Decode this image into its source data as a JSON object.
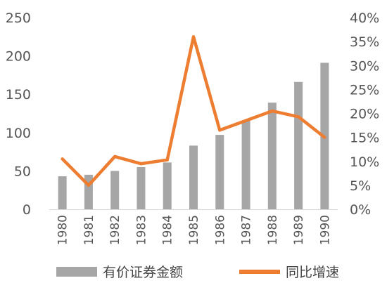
{
  "chart_data": {
    "type": "bar",
    "categories": [
      "1980",
      "1981",
      "1982",
      "1983",
      "1984",
      "1985",
      "1986",
      "1987",
      "1988",
      "1989",
      "1990"
    ],
    "series": [
      {
        "name": "有价证券金额",
        "type": "bar",
        "axis": "left",
        "color": "#a6a6a6",
        "values": [
          43,
          45,
          50,
          55,
          61,
          83,
          97,
          116,
          139,
          166,
          191
        ]
      },
      {
        "name": "同比增速",
        "type": "line",
        "axis": "right",
        "color": "#ed7d31",
        "values": [
          10.5,
          5.0,
          11.0,
          9.5,
          10.3,
          36.0,
          16.5,
          18.5,
          20.5,
          19.3,
          15.0
        ]
      }
    ],
    "y_left": {
      "min": 0,
      "max": 250,
      "ticks": [
        0,
        50,
        100,
        150,
        200,
        250
      ],
      "labels": [
        "0",
        "50",
        "100",
        "150",
        "200",
        "250"
      ]
    },
    "y_right": {
      "min": 0,
      "max": 40,
      "ticks": [
        0,
        5,
        10,
        15,
        20,
        25,
        30,
        35,
        40
      ],
      "labels": [
        "0%",
        "5%",
        "10%",
        "15%",
        "20%",
        "25%",
        "30%",
        "35%",
        "40%"
      ]
    },
    "grid": false,
    "legend_position": "bottom"
  }
}
